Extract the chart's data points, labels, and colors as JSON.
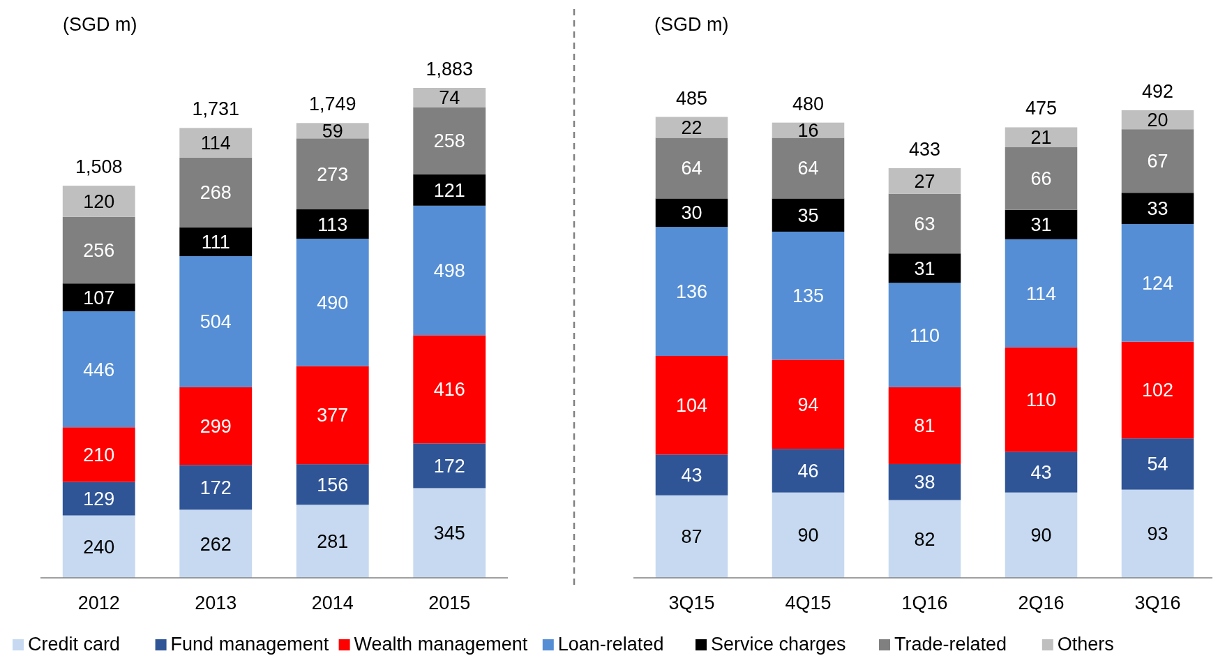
{
  "chart_data": [
    {
      "type": "bar",
      "stacked": true,
      "data_labels": true,
      "legend": "bottom",
      "ylabel": "(SGD m)",
      "categories": [
        "2012",
        "2013",
        "2014",
        "2015"
      ],
      "series": [
        {
          "name": "Credit card",
          "color": "#c6d9f1",
          "values": [
            240,
            262,
            281,
            345
          ]
        },
        {
          "name": "Fund management",
          "color": "#2f5597",
          "values": [
            129,
            172,
            156,
            172
          ]
        },
        {
          "name": "Wealth management",
          "color": "#ff0000",
          "values": [
            210,
            299,
            377,
            416
          ]
        },
        {
          "name": "Loan-related",
          "color": "#558ed5",
          "values": [
            446,
            504,
            490,
            498
          ]
        },
        {
          "name": "Service charges",
          "color": "#000000",
          "values": [
            107,
            111,
            113,
            121
          ]
        },
        {
          "name": "Trade-related",
          "color": "#808080",
          "values": [
            256,
            268,
            273,
            258
          ]
        },
        {
          "name": "Others",
          "color": "#bfbfbf",
          "values": [
            120,
            114,
            59,
            74
          ]
        }
      ],
      "totals": [
        "1,508",
        "1,731",
        "1,749",
        "1,883"
      ]
    },
    {
      "type": "bar",
      "stacked": true,
      "data_labels": true,
      "ylabel": "(SGD m)",
      "categories": [
        "3Q15",
        "4Q15",
        "1Q16",
        "2Q16",
        "3Q16"
      ],
      "series": [
        {
          "color": "#c6d9f1",
          "values": [
            87,
            90,
            82,
            90,
            93
          ]
        },
        {
          "color": "#2f5597",
          "values": [
            43,
            46,
            38,
            43,
            54
          ]
        },
        {
          "color": "#ff0000",
          "values": [
            104,
            94,
            81,
            110,
            102
          ]
        },
        {
          "color": "#558ed5",
          "values": [
            136,
            135,
            110,
            114,
            124
          ]
        },
        {
          "color": "#000000",
          "values": [
            30,
            35,
            31,
            31,
            33
          ]
        },
        {
          "color": "#808080",
          "values": [
            64,
            64,
            63,
            66,
            67
          ]
        },
        {
          "color": "#bfbfbf",
          "values": [
            22,
            16,
            27,
            21,
            20
          ]
        }
      ],
      "totals": [
        "485",
        "480",
        "433",
        "475",
        "492"
      ]
    }
  ]
}
